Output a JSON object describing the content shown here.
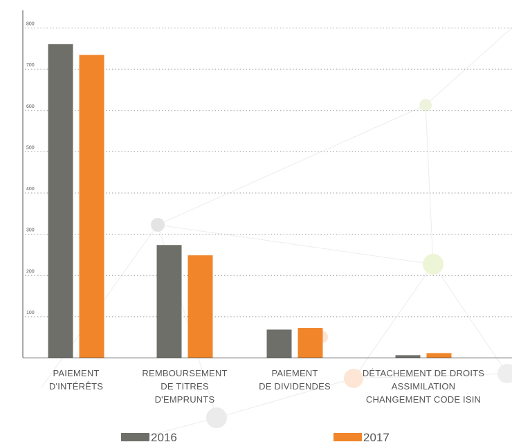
{
  "chart_data": {
    "type": "bar",
    "categories": [
      [
        "PAIEMENT",
        "D'INTÉRÊTS"
      ],
      [
        "REMBOURSEMENT",
        "DE TITRES",
        "D'EMPRUNTS"
      ],
      [
        "PAIEMENT",
        "DE DIVIDENDES"
      ],
      [
        "DÉTACHEMENT DE DROITS",
        "ASSIMILATION",
        "CHANGEMENT CODE ISIN"
      ]
    ],
    "series": [
      {
        "name": "2016",
        "color": "#6f6f69",
        "values": [
          760,
          273,
          68,
          6
        ]
      },
      {
        "name": "2017",
        "color": "#f08529",
        "values": [
          734,
          248,
          72,
          11
        ]
      }
    ],
    "yticks": [
      "100",
      "200",
      "300",
      "400",
      "500",
      "600",
      "700",
      "800"
    ],
    "ylim": [
      0,
      800
    ],
    "grid": true,
    "legend_position": "bottom",
    "title": "",
    "xlabel": "",
    "ylabel": ""
  }
}
